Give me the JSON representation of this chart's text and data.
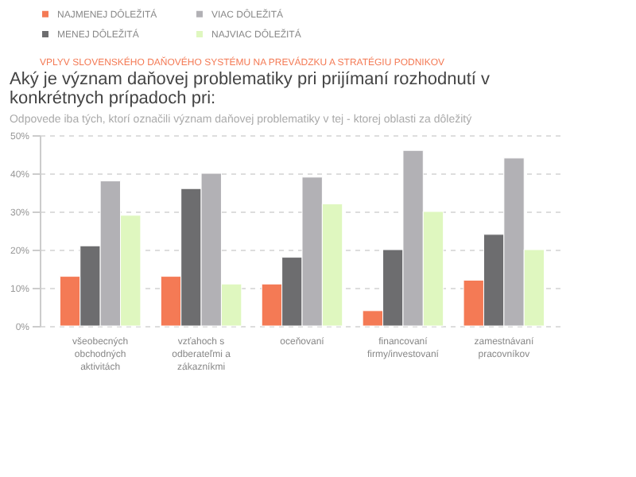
{
  "chart_data": {
    "type": "bar",
    "title": "Aký je význam daňovej problematiky pri prijímaní rozhodnutí v konkrétnych prípadoch pri:",
    "subtitle": "Odpovede iba tých, ktorí označili význam daňovej problematiky v tej - ktorej oblasti za dôležitý",
    "annotations": [
      "VPLYV SLOVENSKÉHO DAŇOVÉHO SYSTÉMU NA PREVÁDZKU A STRATÉGIU PODNIKOV"
    ],
    "categories": [
      "všeobecných obchodných aktivitách",
      "vzťahoch s odberateľmi a zákazníkmi",
      "oceňovaní",
      "financovaní firmy/investovaní",
      "zamestnávaní pracovníkov"
    ],
    "series": [
      {
        "name": "NAJMENEJ DÔLEŽITÁ",
        "color": "#f47a55",
        "values": [
          13,
          13,
          11,
          4,
          12
        ]
      },
      {
        "name": "MENEJ DÔLEŽITÁ",
        "color": "#6d6d6f",
        "values": [
          21,
          36,
          18,
          20,
          24
        ]
      },
      {
        "name": "VIAC DÔLEŽITÁ",
        "color": "#b2b1b5",
        "values": [
          38,
          40,
          39,
          46,
          44
        ]
      },
      {
        "name": "NAJVIAC DÔLEŽITÁ",
        "color": "#dff7bf",
        "values": [
          29,
          11,
          32,
          30,
          20
        ]
      }
    ],
    "ylim": [
      0,
      50
    ],
    "yticks": [
      {
        "value": 0,
        "label": "0%"
      },
      {
        "value": 10,
        "label": "10%"
      },
      {
        "value": 20,
        "label": "20%"
      },
      {
        "value": 30,
        "label": "30%"
      },
      {
        "value": 40,
        "label": "40%"
      },
      {
        "value": 50,
        "label": "50%"
      }
    ],
    "grid": "y",
    "legend": "top left"
  }
}
